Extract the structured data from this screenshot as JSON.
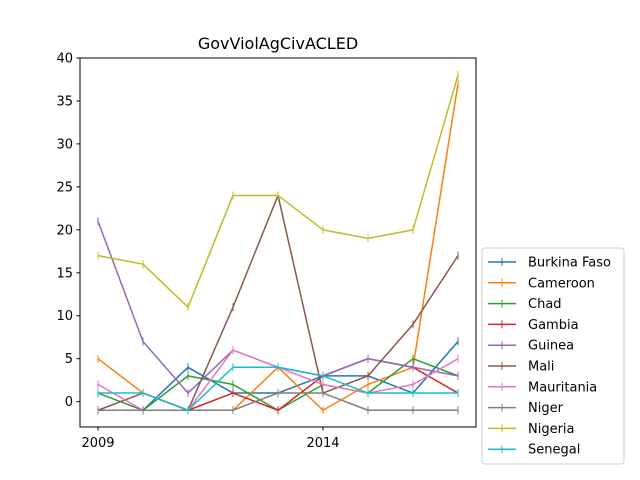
{
  "chart_data": {
    "type": "line",
    "title": "GovViolAgCivACLED",
    "xlabel": "",
    "ylabel": "",
    "x": [
      2009,
      2010,
      2011,
      2012,
      2013,
      2014,
      2015,
      2016,
      2017
    ],
    "xticks": [
      2009,
      2014
    ],
    "xlim": [
      2008.6,
      2017.4
    ],
    "ylim": [
      -2.95,
      40
    ],
    "yticks": [
      0,
      5,
      10,
      15,
      20,
      25,
      30,
      35,
      40
    ],
    "grid": false,
    "legend": "outside-lower-right",
    "series": [
      {
        "name": "Burkina Faso",
        "color": "#1f77b4",
        "values": [
          -1,
          -1,
          4,
          1,
          1,
          3,
          3,
          1,
          7
        ]
      },
      {
        "name": "Cameroon",
        "color": "#ff7f0e",
        "values": [
          5,
          1,
          -1,
          -1,
          4,
          -1,
          2,
          4,
          37
        ]
      },
      {
        "name": "Chad",
        "color": "#2ca02c",
        "values": [
          1,
          -1,
          3,
          2,
          -1,
          2,
          1,
          5,
          3
        ]
      },
      {
        "name": "Gambia",
        "color": "#d62728",
        "values": [
          -1,
          -1,
          -1,
          1,
          -1,
          3,
          5,
          4,
          1
        ]
      },
      {
        "name": "Guinea",
        "color": "#9467bd",
        "values": [
          21,
          7,
          1,
          6,
          4,
          3,
          5,
          4,
          3
        ]
      },
      {
        "name": "Mali",
        "color": "#8c564b",
        "values": [
          -1,
          1,
          -1,
          11,
          24,
          1,
          3,
          9,
          17
        ]
      },
      {
        "name": "Mauritania",
        "color": "#e377c2",
        "values": [
          2,
          -1,
          -1,
          6,
          4,
          2,
          1,
          2,
          5
        ]
      },
      {
        "name": "Niger",
        "color": "#7f7f7f",
        "values": [
          -1,
          -1,
          -1,
          -1,
          1,
          1,
          -1,
          -1,
          -1
        ]
      },
      {
        "name": "Nigeria",
        "color": "#bcbd22",
        "values": [
          17,
          16,
          11,
          24,
          24,
          20,
          19,
          20,
          38
        ]
      },
      {
        "name": "Senegal",
        "color": "#17becf",
        "values": [
          1,
          1,
          -1,
          4,
          4,
          3,
          1,
          1,
          1
        ]
      }
    ]
  }
}
